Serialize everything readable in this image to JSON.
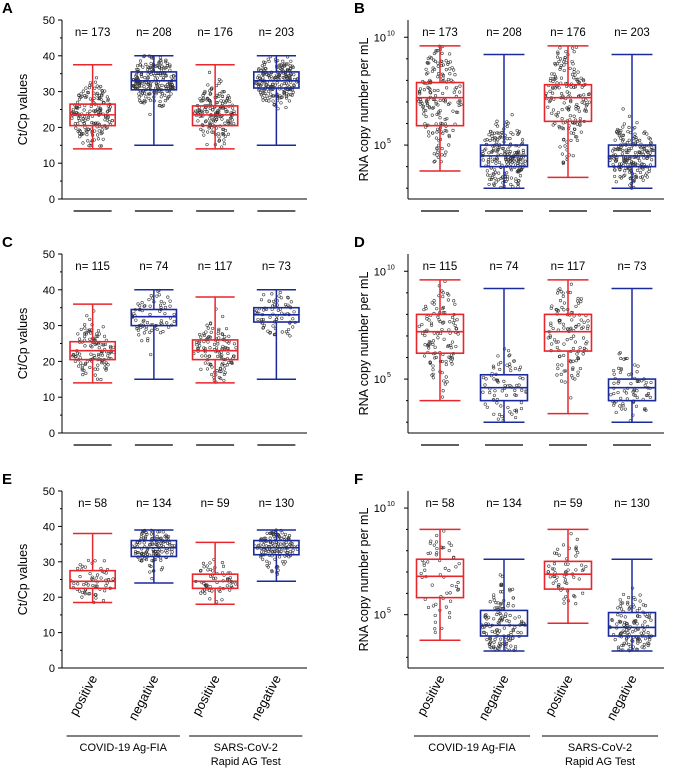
{
  "chart_data": [
    {
      "panel": "A",
      "type": "box",
      "scale": "linear",
      "ylabel": "Ct/Cp  values",
      "ylim": [
        0,
        50
      ],
      "yticks": [
        0,
        10,
        20,
        30,
        40,
        50
      ],
      "boxes": [
        {
          "color": "#e8262c",
          "n_label": "n= 173",
          "min": 14,
          "q1": 20.5,
          "median": 23.5,
          "q3": 26.5,
          "max": 37.5
        },
        {
          "color": "#1a2a9c",
          "n_label": "n= 208",
          "min": 15,
          "q1": 30.5,
          "median": 33,
          "q3": 35.5,
          "max": 40
        },
        {
          "color": "#e8262c",
          "n_label": "n= 176",
          "min": 14,
          "q1": 20.5,
          "median": 23.5,
          "q3": 26,
          "max": 37.5
        },
        {
          "color": "#1a2a9c",
          "n_label": "n= 203",
          "min": 15,
          "q1": 31,
          "median": 33,
          "q3": 35.5,
          "max": 40
        }
      ]
    },
    {
      "panel": "B",
      "type": "box",
      "scale": "log10",
      "ylabel": "RNA copy number per mL",
      "ylim": [
        2.5,
        10.8
      ],
      "yticks": [
        {
          "base": "10",
          "exp": "5",
          "value": 5
        },
        {
          "base": "10",
          "exp": "10",
          "value": 10
        }
      ],
      "boxes": [
        {
          "color": "#e8262c",
          "n_label": "n= 173",
          "min": 3.8,
          "q1": 5.9,
          "median": 7.2,
          "q3": 7.9,
          "max": 9.6
        },
        {
          "color": "#1a2a9c",
          "n_label": "n= 208",
          "min": 3.0,
          "q1": 4.0,
          "median": 4.5,
          "q3": 5.0,
          "max": 9.2
        },
        {
          "color": "#e8262c",
          "n_label": "n= 176",
          "min": 3.5,
          "q1": 6.1,
          "median": 7.2,
          "q3": 7.8,
          "max": 9.6
        },
        {
          "color": "#1a2a9c",
          "n_label": "n= 203",
          "min": 3.0,
          "q1": 4.0,
          "median": 4.5,
          "q3": 5.0,
          "max": 9.2
        }
      ]
    },
    {
      "panel": "C",
      "type": "box",
      "scale": "linear",
      "ylabel": "Ct/Cp  values",
      "ylim": [
        0,
        50
      ],
      "yticks": [
        0,
        10,
        20,
        30,
        40,
        50
      ],
      "boxes": [
        {
          "color": "#e8262c",
          "n_label": "n= 115",
          "min": 14,
          "q1": 20.5,
          "median": 23,
          "q3": 25.5,
          "max": 36
        },
        {
          "color": "#1a2a9c",
          "n_label": "n= 74",
          "min": 15,
          "q1": 30,
          "median": 32.5,
          "q3": 34.5,
          "max": 40
        },
        {
          "color": "#e8262c",
          "n_label": "n= 117",
          "min": 14,
          "q1": 20.5,
          "median": 23,
          "q3": 26,
          "max": 38
        },
        {
          "color": "#1a2a9c",
          "n_label": "n= 73",
          "min": 15,
          "q1": 31,
          "median": 33,
          "q3": 35,
          "max": 40
        }
      ]
    },
    {
      "panel": "D",
      "type": "box",
      "scale": "log10",
      "ylabel": "RNA copy number per mL",
      "ylim": [
        2.5,
        10.8
      ],
      "yticks": [
        {
          "base": "10",
          "exp": "5",
          "value": 5
        },
        {
          "base": "10",
          "exp": "10",
          "value": 10
        }
      ],
      "boxes": [
        {
          "color": "#e8262c",
          "n_label": "n= 115",
          "min": 4.0,
          "q1": 6.2,
          "median": 7.2,
          "q3": 8.0,
          "max": 9.6
        },
        {
          "color": "#1a2a9c",
          "n_label": "n= 74",
          "min": 3.0,
          "q1": 4.0,
          "median": 4.6,
          "q3": 5.2,
          "max": 9.2
        },
        {
          "color": "#e8262c",
          "n_label": "n= 117",
          "min": 3.4,
          "q1": 6.3,
          "median": 7.2,
          "q3": 8.0,
          "max": 9.6
        },
        {
          "color": "#1a2a9c",
          "n_label": "n= 73",
          "min": 3.0,
          "q1": 4.0,
          "median": 4.6,
          "q3": 5.0,
          "max": 9.2
        }
      ]
    },
    {
      "panel": "E",
      "type": "box",
      "scale": "linear",
      "ylabel": "Ct/Cp  values",
      "ylim": [
        0,
        50
      ],
      "yticks": [
        0,
        10,
        20,
        30,
        40,
        50
      ],
      "boxes": [
        {
          "color": "#e8262c",
          "n_label": "n= 58",
          "min": 18.5,
          "q1": 22.5,
          "median": 24.5,
          "q3": 27.5,
          "max": 38
        },
        {
          "color": "#1a2a9c",
          "n_label": "n= 134",
          "min": 24,
          "q1": 31.5,
          "median": 34,
          "q3": 36,
          "max": 39
        },
        {
          "color": "#e8262c",
          "n_label": "n= 59",
          "min": 18,
          "q1": 22.5,
          "median": 24.5,
          "q3": 26.5,
          "max": 35.5
        },
        {
          "color": "#1a2a9c",
          "n_label": "n= 130",
          "min": 24.5,
          "q1": 32,
          "median": 34,
          "q3": 36,
          "max": 39
        }
      ]
    },
    {
      "panel": "F",
      "type": "box",
      "scale": "log10",
      "ylabel": "RNA copy number per mL",
      "ylim": [
        2.5,
        10.8
      ],
      "yticks": [
        {
          "base": "10",
          "exp": "5",
          "value": 5
        },
        {
          "base": "10",
          "exp": "10",
          "value": 10
        }
      ],
      "boxes": [
        {
          "color": "#e8262c",
          "n_label": "n= 58",
          "min": 3.8,
          "q1": 5.8,
          "median": 6.8,
          "q3": 7.6,
          "max": 9.0
        },
        {
          "color": "#1a2a9c",
          "n_label": "n= 134",
          "min": 3.3,
          "q1": 4.0,
          "median": 4.5,
          "q3": 5.2,
          "max": 7.6
        },
        {
          "color": "#e8262c",
          "n_label": "n= 59",
          "min": 4.6,
          "q1": 6.2,
          "median": 6.9,
          "q3": 7.5,
          "max": 9.0
        },
        {
          "color": "#1a2a9c",
          "n_label": "n= 130",
          "min": 3.3,
          "q1": 4.0,
          "median": 4.4,
          "q3": 5.1,
          "max": 7.6
        }
      ]
    }
  ],
  "categories": [
    "positive",
    "negative",
    "positive",
    "negative"
  ],
  "groups": [
    {
      "lines": [
        "COVID-19 Ag-FIA"
      ]
    },
    {
      "lines": [
        "SARS-CoV-2",
        "Rapid AG Test"
      ]
    }
  ],
  "colors": {
    "positive": "#e8262c",
    "negative": "#1a2a9c",
    "axis": "#000000"
  }
}
